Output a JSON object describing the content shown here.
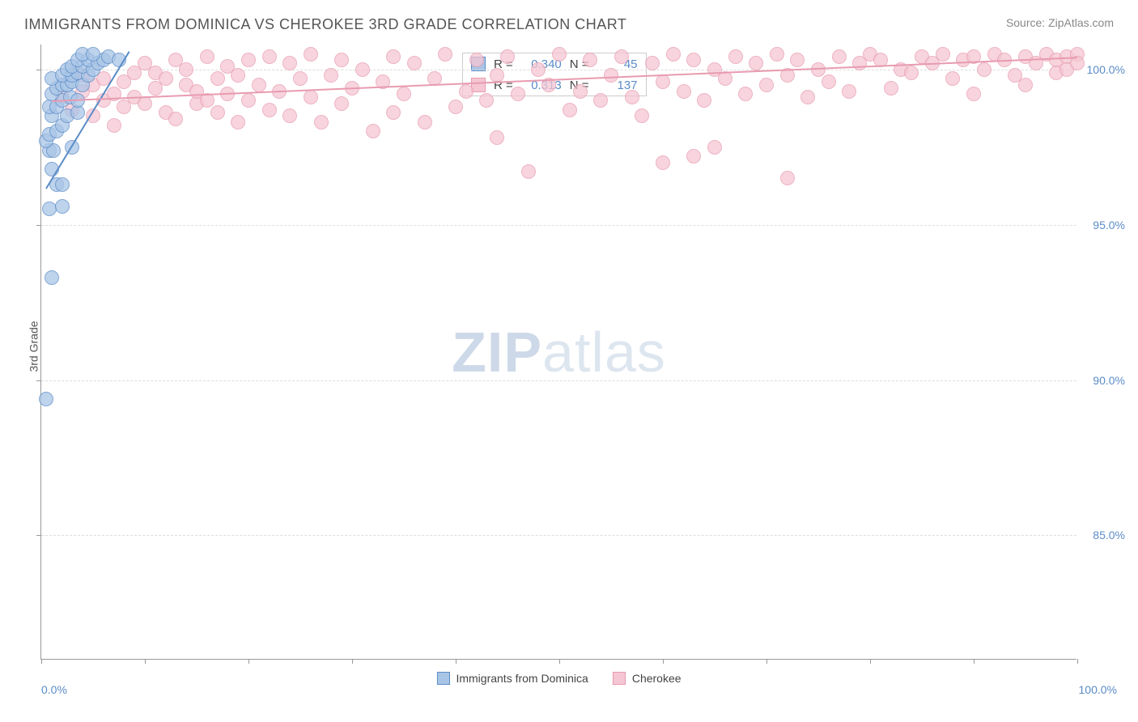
{
  "header": {
    "title": "IMMIGRANTS FROM DOMINICA VS CHEROKEE 3RD GRADE CORRELATION CHART",
    "source": "Source: ZipAtlas.com"
  },
  "watermark": {
    "bold": "ZIP",
    "light": "atlas"
  },
  "chart": {
    "type": "scatter",
    "y_axis_label": "3rd Grade",
    "x_min": 0,
    "x_max": 100,
    "y_min": 81,
    "y_max": 100.8,
    "y_gridlines": [
      85,
      90,
      95,
      100
    ],
    "y_tick_labels": [
      "85.0%",
      "90.0%",
      "95.0%",
      "100.0%"
    ],
    "x_ticks": [
      0,
      10,
      20,
      30,
      40,
      50,
      60,
      70,
      80,
      90,
      100
    ],
    "x_left_label": "0.0%",
    "x_right_label": "100.0%",
    "grid_color": "#dddddd",
    "axis_label_color": "#5b8cc7",
    "marker_radius": 9,
    "marker_fill_opacity": 0.35,
    "series": [
      {
        "name": "Immigrants from Dominica",
        "color_stroke": "#5b8cc7",
        "color_fill": "#a9c5e6",
        "R": "0.340",
        "N": "45",
        "trend": {
          "x1": 0.5,
          "y1": 96.2,
          "x2": 8.5,
          "y2": 100.6
        },
        "points": [
          [
            0.5,
            89.4
          ],
          [
            1.0,
            93.3
          ],
          [
            0.8,
            95.5
          ],
          [
            2.0,
            95.6
          ],
          [
            1.5,
            96.3
          ],
          [
            2.0,
            96.3
          ],
          [
            1.0,
            96.8
          ],
          [
            0.8,
            97.4
          ],
          [
            1.2,
            97.4
          ],
          [
            0.5,
            97.7
          ],
          [
            0.8,
            97.9
          ],
          [
            3.0,
            97.5
          ],
          [
            1.5,
            98.0
          ],
          [
            2.0,
            98.2
          ],
          [
            1.0,
            98.5
          ],
          [
            2.5,
            98.5
          ],
          [
            0.8,
            98.8
          ],
          [
            1.5,
            98.8
          ],
          [
            3.5,
            98.6
          ],
          [
            2.0,
            99.0
          ],
          [
            1.0,
            99.2
          ],
          [
            2.8,
            99.1
          ],
          [
            3.5,
            99.0
          ],
          [
            1.5,
            99.4
          ],
          [
            2.0,
            99.5
          ],
          [
            2.5,
            99.5
          ],
          [
            3.0,
            99.6
          ],
          [
            4.0,
            99.5
          ],
          [
            1.0,
            99.7
          ],
          [
            2.0,
            99.8
          ],
          [
            3.0,
            99.8
          ],
          [
            3.5,
            99.9
          ],
          [
            4.5,
            99.8
          ],
          [
            2.5,
            100.0
          ],
          [
            3.0,
            100.1
          ],
          [
            4.0,
            100.1
          ],
          [
            5.0,
            100.0
          ],
          [
            3.5,
            100.3
          ],
          [
            4.5,
            100.3
          ],
          [
            5.5,
            100.2
          ],
          [
            6.0,
            100.3
          ],
          [
            4.0,
            100.5
          ],
          [
            5.0,
            100.5
          ],
          [
            6.5,
            100.4
          ],
          [
            7.5,
            100.3
          ]
        ]
      },
      {
        "name": "Cherokee",
        "color_stroke": "#e89bb0",
        "color_fill": "#f5c6d3",
        "R": "0.313",
        "N": "137",
        "trend": {
          "x1": 1,
          "y1": 99.0,
          "x2": 100,
          "y2": 100.4
        },
        "points": [
          [
            2,
            99.1
          ],
          [
            3,
            98.7
          ],
          [
            4,
            99.3
          ],
          [
            4,
            99.8
          ],
          [
            5,
            98.5
          ],
          [
            5,
            99.5
          ],
          [
            6,
            99.0
          ],
          [
            6,
            99.7
          ],
          [
            7,
            98.2
          ],
          [
            7,
            99.2
          ],
          [
            8,
            99.6
          ],
          [
            8,
            98.8
          ],
          [
            9,
            99.9
          ],
          [
            9,
            99.1
          ],
          [
            10,
            100.2
          ],
          [
            10,
            98.9
          ],
          [
            11,
            99.4
          ],
          [
            11,
            99.9
          ],
          [
            12,
            98.6
          ],
          [
            12,
            99.7
          ],
          [
            13,
            100.3
          ],
          [
            13,
            98.4
          ],
          [
            14,
            99.5
          ],
          [
            14,
            100.0
          ],
          [
            15,
            98.9
          ],
          [
            15,
            99.3
          ],
          [
            16,
            100.4
          ],
          [
            16,
            99.0
          ],
          [
            17,
            99.7
          ],
          [
            17,
            98.6
          ],
          [
            18,
            100.1
          ],
          [
            18,
            99.2
          ],
          [
            19,
            98.3
          ],
          [
            19,
            99.8
          ],
          [
            20,
            100.3
          ],
          [
            20,
            99.0
          ],
          [
            21,
            99.5
          ],
          [
            22,
            100.4
          ],
          [
            22,
            98.7
          ],
          [
            23,
            99.3
          ],
          [
            24,
            100.2
          ],
          [
            24,
            98.5
          ],
          [
            25,
            99.7
          ],
          [
            26,
            100.5
          ],
          [
            26,
            99.1
          ],
          [
            27,
            98.3
          ],
          [
            28,
            99.8
          ],
          [
            29,
            100.3
          ],
          [
            29,
            98.9
          ],
          [
            30,
            99.4
          ],
          [
            31,
            100.0
          ],
          [
            32,
            98.0
          ],
          [
            33,
            99.6
          ],
          [
            34,
            100.4
          ],
          [
            34,
            98.6
          ],
          [
            35,
            99.2
          ],
          [
            36,
            100.2
          ],
          [
            37,
            98.3
          ],
          [
            38,
            99.7
          ],
          [
            39,
            100.5
          ],
          [
            40,
            98.8
          ],
          [
            41,
            99.3
          ],
          [
            42,
            100.3
          ],
          [
            43,
            99.0
          ],
          [
            44,
            97.8
          ],
          [
            44,
            99.8
          ],
          [
            45,
            100.4
          ],
          [
            46,
            99.2
          ],
          [
            47,
            96.7
          ],
          [
            48,
            100.0
          ],
          [
            49,
            99.5
          ],
          [
            50,
            100.5
          ],
          [
            51,
            98.7
          ],
          [
            52,
            99.3
          ],
          [
            53,
            100.3
          ],
          [
            54,
            99.0
          ],
          [
            55,
            99.8
          ],
          [
            56,
            100.4
          ],
          [
            57,
            99.1
          ],
          [
            58,
            98.5
          ],
          [
            59,
            100.2
          ],
          [
            60,
            99.6
          ],
          [
            60,
            97.0
          ],
          [
            61,
            100.5
          ],
          [
            62,
            99.3
          ],
          [
            63,
            100.3
          ],
          [
            63,
            97.2
          ],
          [
            64,
            99.0
          ],
          [
            65,
            100.0
          ],
          [
            65,
            97.5
          ],
          [
            66,
            99.7
          ],
          [
            67,
            100.4
          ],
          [
            68,
            99.2
          ],
          [
            69,
            100.2
          ],
          [
            70,
            99.5
          ],
          [
            71,
            100.5
          ],
          [
            72,
            99.8
          ],
          [
            72,
            96.5
          ],
          [
            73,
            100.3
          ],
          [
            74,
            99.1
          ],
          [
            75,
            100.0
          ],
          [
            76,
            99.6
          ],
          [
            77,
            100.4
          ],
          [
            78,
            99.3
          ],
          [
            79,
            100.2
          ],
          [
            80,
            100.5
          ],
          [
            81,
            100.3
          ],
          [
            82,
            99.4
          ],
          [
            83,
            100.0
          ],
          [
            84,
            99.9
          ],
          [
            85,
            100.4
          ],
          [
            86,
            100.2
          ],
          [
            87,
            100.5
          ],
          [
            88,
            99.7
          ],
          [
            89,
            100.3
          ],
          [
            90,
            100.4
          ],
          [
            90,
            99.2
          ],
          [
            91,
            100.0
          ],
          [
            92,
            100.5
          ],
          [
            93,
            100.3
          ],
          [
            94,
            99.8
          ],
          [
            95,
            100.4
          ],
          [
            95,
            99.5
          ],
          [
            96,
            100.2
          ],
          [
            97,
            100.5
          ],
          [
            98,
            100.3
          ],
          [
            98,
            99.9
          ],
          [
            99,
            100.4
          ],
          [
            99,
            100.0
          ],
          [
            100,
            100.5
          ],
          [
            100,
            100.2
          ]
        ]
      }
    ],
    "stats_labels": {
      "R": "R =",
      "N": "N ="
    },
    "legend_position": "bottom-center"
  }
}
